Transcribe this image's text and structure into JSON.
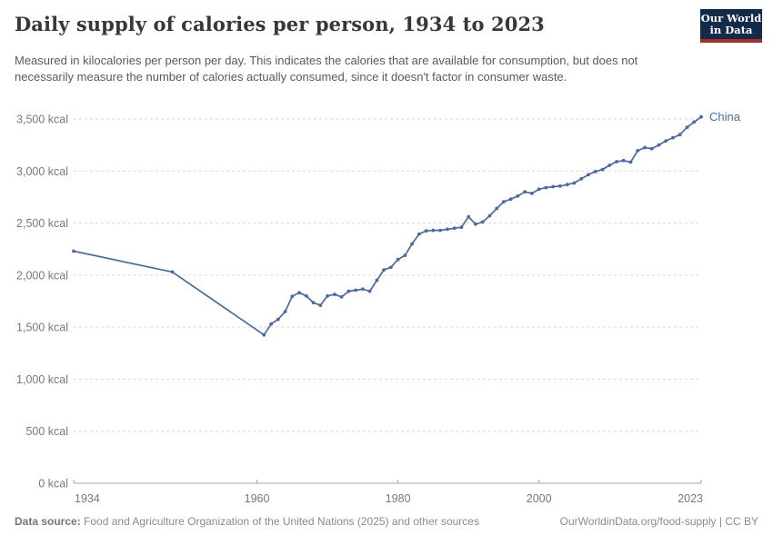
{
  "header": {
    "title": "Daily supply of calories per person, 1934 to 2023",
    "subtitle": "Measured in kilocalories per person per day. This indicates the calories that are available for consumption, but does not necessarily measure the number of calories actually consumed, since it doesn't factor in consumer waste.",
    "logo": {
      "line1": "Our World",
      "line2": "in Data",
      "bg_color": "#132B4A",
      "stripe_color": "#A3312A"
    }
  },
  "chart_data": {
    "type": "line",
    "title": "Daily supply of calories per person, 1934 to 2023",
    "xlabel": "",
    "ylabel": "",
    "unit": "kcal",
    "xlim": [
      1934,
      2023
    ],
    "ylim": [
      0,
      3500
    ],
    "grid": "horizontal-dashed",
    "legend_position": "end-of-line-label",
    "x_ticks": [
      1934,
      1960,
      1980,
      2000,
      2023
    ],
    "y_ticks": [
      {
        "value": 0,
        "label": "0 kcal"
      },
      {
        "value": 500,
        "label": "500 kcal"
      },
      {
        "value": 1000,
        "label": "1,000 kcal"
      },
      {
        "value": 1500,
        "label": "1,500 kcal"
      },
      {
        "value": 2000,
        "label": "2,000 kcal"
      },
      {
        "value": 2500,
        "label": "2,500 kcal"
      },
      {
        "value": 3000,
        "label": "3,000 kcal"
      },
      {
        "value": 3500,
        "label": "3,500 kcal"
      }
    ],
    "series": [
      {
        "name": "China",
        "color": "#4C6A9C",
        "points": [
          [
            1934,
            2230
          ],
          [
            1948,
            2030
          ],
          [
            1961,
            1425
          ],
          [
            1962,
            1530
          ],
          [
            1963,
            1575
          ],
          [
            1964,
            1650
          ],
          [
            1965,
            1795
          ],
          [
            1966,
            1830
          ],
          [
            1967,
            1800
          ],
          [
            1968,
            1735
          ],
          [
            1969,
            1710
          ],
          [
            1970,
            1800
          ],
          [
            1971,
            1815
          ],
          [
            1972,
            1790
          ],
          [
            1973,
            1845
          ],
          [
            1974,
            1855
          ],
          [
            1975,
            1865
          ],
          [
            1976,
            1845
          ],
          [
            1977,
            1950
          ],
          [
            1978,
            2050
          ],
          [
            1979,
            2075
          ],
          [
            1980,
            2150
          ],
          [
            1981,
            2190
          ],
          [
            1982,
            2300
          ],
          [
            1983,
            2395
          ],
          [
            1984,
            2425
          ],
          [
            1985,
            2430
          ],
          [
            1986,
            2430
          ],
          [
            1987,
            2440
          ],
          [
            1988,
            2450
          ],
          [
            1989,
            2460
          ],
          [
            1990,
            2560
          ],
          [
            1991,
            2490
          ],
          [
            1992,
            2510
          ],
          [
            1993,
            2570
          ],
          [
            1994,
            2640
          ],
          [
            1995,
            2705
          ],
          [
            1996,
            2730
          ],
          [
            1997,
            2760
          ],
          [
            1998,
            2800
          ],
          [
            1999,
            2785
          ],
          [
            2000,
            2825
          ],
          [
            2001,
            2840
          ],
          [
            2002,
            2850
          ],
          [
            2003,
            2855
          ],
          [
            2004,
            2870
          ],
          [
            2005,
            2885
          ],
          [
            2006,
            2925
          ],
          [
            2007,
            2965
          ],
          [
            2008,
            2995
          ],
          [
            2009,
            3015
          ],
          [
            2010,
            3055
          ],
          [
            2011,
            3090
          ],
          [
            2012,
            3100
          ],
          [
            2013,
            3085
          ],
          [
            2014,
            3195
          ],
          [
            2015,
            3225
          ],
          [
            2016,
            3215
          ],
          [
            2017,
            3250
          ],
          [
            2018,
            3290
          ],
          [
            2019,
            3320
          ],
          [
            2020,
            3350
          ],
          [
            2021,
            3420
          ],
          [
            2022,
            3470
          ],
          [
            2023,
            3520
          ]
        ]
      }
    ],
    "colors": {
      "gridline": "#d9d9d9",
      "axis": "#a6a6a6",
      "tick_label": "#76787b"
    }
  },
  "footer": {
    "datasource_label": "Data source:",
    "datasource_text": " Food and Agriculture Organization of the United Nations (2025) and other sources",
    "link_text": "OurWorldinData.org/food-supply",
    "license_suffix": " | CC BY"
  }
}
